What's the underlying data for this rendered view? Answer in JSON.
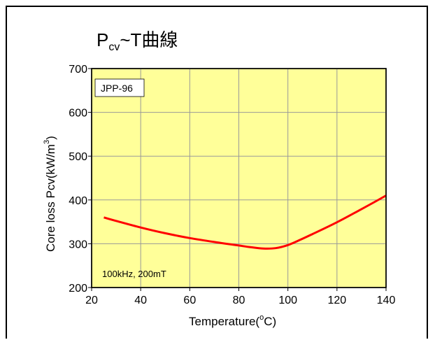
{
  "chart_data": {
    "type": "line",
    "title_main": "P",
    "title_sub": "cv",
    "title_rest": "~T曲線",
    "xlabel_main": "Temperature(",
    "xlabel_sup": "o",
    "xlabel_end": "C)",
    "ylabel_main": "Core loss  Pcv(kW/m",
    "ylabel_sup": "3",
    "ylabel_end": ")",
    "material_label": "JPP-96",
    "condition_label": "100kHz, 200mT",
    "xlim": [
      20,
      140
    ],
    "ylim": [
      200,
      700
    ],
    "x_ticks": [
      20,
      40,
      60,
      80,
      100,
      120,
      140
    ],
    "y_ticks": [
      200,
      300,
      400,
      500,
      600,
      700
    ],
    "grid": true,
    "plot_background": "#ffff99",
    "series": [
      {
        "color": "#ff0000",
        "x": [
          25,
          30,
          40,
          50,
          60,
          70,
          80,
          85,
          90,
          95,
          100,
          105,
          110,
          120,
          130,
          140
        ],
        "y": [
          360,
          352,
          337,
          324,
          313,
          304,
          296,
          292,
          289,
          290,
          297,
          309,
          322,
          349,
          379,
          410
        ]
      }
    ]
  }
}
